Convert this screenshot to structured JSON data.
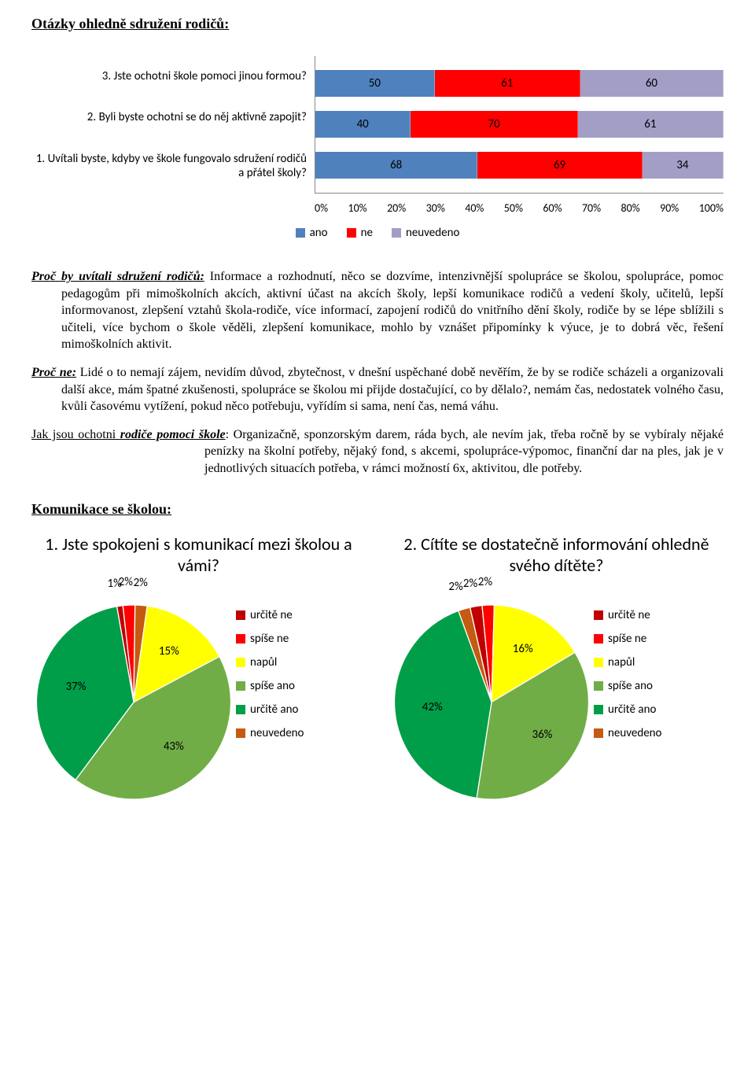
{
  "section1_title": "Otázky ohledně sdružení rodičů:",
  "bar_chart": {
    "type": "horizontal stacked bar 100%",
    "rows": [
      {
        "label": "3. Jste ochotni škole pomoci jinou formou?",
        "ano": 50,
        "ne": 61,
        "neuvedeno": 60
      },
      {
        "label": "2. Byli byste ochotni se do něj aktivně zapojit?",
        "ano": 40,
        "ne": 70,
        "neuvedeno": 61
      },
      {
        "label": "1. Uvítali byste, kdyby ve škole fungovalo sdružení rodičů a přátel školy?",
        "ano": 68,
        "ne": 69,
        "neuvedeno": 34
      }
    ],
    "colors": {
      "ano": "#4f81bd",
      "ne": "#ff0000",
      "neuvedeno": "#a29ec6"
    },
    "axis": [
      "0%",
      "10%",
      "20%",
      "30%",
      "40%",
      "50%",
      "60%",
      "70%",
      "80%",
      "90%",
      "100%"
    ],
    "legend": [
      {
        "label": "ano",
        "color": "#4f81bd"
      },
      {
        "label": "ne",
        "color": "#ff0000"
      },
      {
        "label": "neuvedeno",
        "color": "#a29ec6"
      }
    ]
  },
  "para1_lead": "Proč by uvítali sdružení rodičů:",
  "para1_body": " Informace a rozhodnutí, něco se dozvíme, intenzivnější spolupráce se školou, spolupráce, pomoc pedagogům při mimoškolních akcích, aktivní účast na akcích školy, lepší komunikace rodičů a vedení školy, učitelů, lepší informovanost, zlepšení vztahů škola-rodiče, více informací, zapojení rodičů do vnitřního dění školy, rodiče by se lépe sblížili s učiteli, více bychom o škole věděli, zlepšení komunikace, mohlo by vznášet připomínky k výuce, je to dobrá věc, řešení mimoškolních aktivit.",
  "para2_lead": "Proč ne:",
  "para2_body": " Lidé o to nemají zájem, nevidím důvod, zbytečnost, v dnešní uspěchané době nevěřím, že by se rodiče scházeli a organizovali další akce, mám špatné zkušenosti, spolupráce se školou mi přijde dostačující, co by dělalo?, nemám čas, nedostatek volného času, kvůli časovému vytížení, pokud něco potřebuju, vyřídím si sama, není čas, nemá váhu.",
  "para3_lead": "Jak jsou ochotni ",
  "para3_lead2": "rodiče pomoci škole",
  "para3_body": ": Organizačně, sponzorským darem, ráda bych, ale nevím jak, třeba ročně by se vybíraly nějaké penízky na školní potřeby, nějaký fond, s akcemi, spolupráce-výpomoc, finanční dar na ples, jak je v jednotlivých situacích potřeba, v rámci možností 6x, aktivitou, dle potřeby.",
  "section2_title": "Komunikace se školou:",
  "pie_legend": [
    {
      "label": "určitě ne",
      "color": "#c00000"
    },
    {
      "label": "spíše ne",
      "color": "#ff0000"
    },
    {
      "label": "napůl",
      "color": "#ffff00"
    },
    {
      "label": "spíše ano",
      "color": "#70ad47"
    },
    {
      "label": "určitě ano",
      "color": "#009e49"
    },
    {
      "label": "neuvedeno",
      "color": "#c55a11"
    }
  ],
  "pie1": {
    "title": "1. Jste spokojeni s komunikací mezi školou a vámi?",
    "slices": [
      {
        "pct": 1,
        "color": "#c00000",
        "label": "1%"
      },
      {
        "pct": 2,
        "color": "#ff0000",
        "label": "2%"
      },
      {
        "pct": 2,
        "color": "#c55a11",
        "label": "2%"
      },
      {
        "pct": 15,
        "color": "#ffff00",
        "label": "15%"
      },
      {
        "pct": 43,
        "color": "#70ad47",
        "label": "43%"
      },
      {
        "pct": 37,
        "color": "#009e49",
        "label": "37%"
      }
    ]
  },
  "pie2": {
    "title": "2. Cítíte se dostatečně informování ohledně svého dítěte?",
    "slices": [
      {
        "pct": 2,
        "color": "#c55a11",
        "label": "2%"
      },
      {
        "pct": 2,
        "color": "#c00000",
        "label": "2%"
      },
      {
        "pct": 2,
        "color": "#ff0000",
        "label": "2%"
      },
      {
        "pct": 16,
        "color": "#ffff00",
        "label": "16%"
      },
      {
        "pct": 36,
        "color": "#70ad47",
        "label": "36%"
      },
      {
        "pct": 42,
        "color": "#009e49",
        "label": "42%"
      }
    ]
  }
}
